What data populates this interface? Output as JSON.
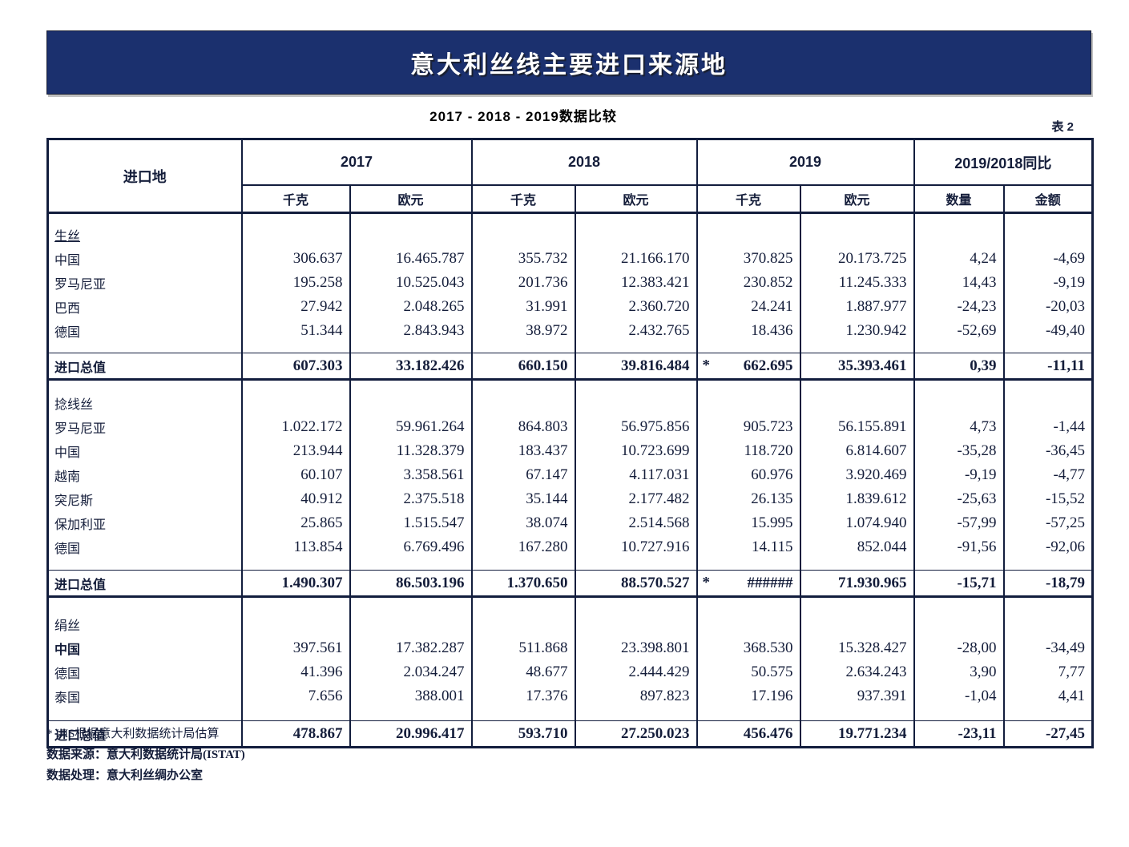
{
  "page": {
    "title_banner": "意大利丝线主要进口来源地",
    "subtitle": "2017 - 2018 - 2019数据比较",
    "table_tag": "表 2"
  },
  "colors": {
    "banner_bg": "#1b306e",
    "border": "#121d3d",
    "title_text": "#ffffff"
  },
  "table": {
    "place_header": "进口地",
    "year_groups": [
      {
        "label": "2017",
        "units": [
          "千克",
          "欧元"
        ]
      },
      {
        "label": "2018",
        "units": [
          "千克",
          "欧元"
        ]
      },
      {
        "label": "2019",
        "units": [
          "千克",
          "欧元"
        ]
      },
      {
        "label": "2019/2018同比",
        "units": [
          "数量",
          "金额"
        ]
      }
    ],
    "total_label": "进口总值",
    "sections": [
      {
        "name": "生丝",
        "underline": true,
        "rows": [
          {
            "place": "中国",
            "values": [
              "306.637",
              "16.465.787",
              "355.732",
              "21.166.170",
              "370.825",
              "20.173.725",
              "4,24",
              "-4,69"
            ]
          },
          {
            "place": "罗马尼亚",
            "values": [
              "195.258",
              "10.525.043",
              "201.736",
              "12.383.421",
              "230.852",
              "11.245.333",
              "14,43",
              "-9,19"
            ]
          },
          {
            "place": "巴西",
            "values": [
              "27.942",
              "2.048.265",
              "31.991",
              "2.360.720",
              "24.241",
              "1.887.977",
              "-24,23",
              "-20,03"
            ]
          },
          {
            "place": "德国",
            "values": [
              "51.344",
              "2.843.943",
              "38.972",
              "2.432.765",
              "18.436",
              "1.230.942",
              "-52,69",
              "-49,40"
            ]
          }
        ],
        "total": {
          "values": [
            "607.303",
            "33.182.426",
            "660.150",
            "39.816.484",
            "662.695",
            "35.393.461",
            "0,39",
            "-11,11"
          ],
          "asterisk_2019kg": "*"
        }
      },
      {
        "name": "捻线丝",
        "underline": false,
        "rows": [
          {
            "place": "罗马尼亚",
            "values": [
              "1.022.172",
              "59.961.264",
              "864.803",
              "56.975.856",
              "905.723",
              "56.155.891",
              "4,73",
              "-1,44"
            ]
          },
          {
            "place": "中国",
            "values": [
              "213.944",
              "11.328.379",
              "183.437",
              "10.723.699",
              "118.720",
              "6.814.607",
              "-35,28",
              "-36,45"
            ]
          },
          {
            "place": "越南",
            "values": [
              "60.107",
              "3.358.561",
              "67.147",
              "4.117.031",
              "60.976",
              "3.920.469",
              "-9,19",
              "-4,77"
            ]
          },
          {
            "place": "突尼斯",
            "values": [
              "40.912",
              "2.375.518",
              "35.144",
              "2.177.482",
              "26.135",
              "1.839.612",
              "-25,63",
              "-15,52"
            ]
          },
          {
            "place": "保加利亚",
            "values": [
              "25.865",
              "1.515.547",
              "38.074",
              "2.514.568",
              "15.995",
              "1.074.940",
              "-57,99",
              "-57,25"
            ]
          },
          {
            "place": "德国",
            "values": [
              "113.854",
              "6.769.496",
              "167.280",
              "10.727.916",
              "14.115",
              "852.044",
              "-91,56",
              "-92,06"
            ]
          }
        ],
        "total": {
          "values": [
            "1.490.307",
            "86.503.196",
            "1.370.650",
            "88.570.527",
            "######",
            "71.930.965",
            "-15,71",
            "-18,79"
          ],
          "asterisk_2019kg": "*"
        }
      },
      {
        "name": "绢丝",
        "underline": false,
        "rows": [
          {
            "place": "中国",
            "bold": true,
            "values": [
              "397.561",
              "17.382.287",
              "511.868",
              "23.398.801",
              "368.530",
              "15.328.427",
              "-28,00",
              "-34,49"
            ]
          },
          {
            "place": "德国",
            "values": [
              "41.396",
              "2.034.247",
              "48.677",
              "2.444.429",
              "50.575",
              "2.634.243",
              "3,90",
              "7,77"
            ]
          },
          {
            "place": "泰国",
            "values": [
              "7.656",
              "388.001",
              "17.376",
              "897.823",
              "17.196",
              "937.391",
              "-1,04",
              "4,41"
            ]
          }
        ],
        "total": {
          "values": [
            "478.867",
            "20.996.417",
            "593.710",
            "27.250.023",
            "456.476",
            "19.771.234",
            "-23,11",
            "-27,45"
          ]
        }
      }
    ]
  },
  "footnotes": [
    {
      "text": "* UIS根据意大利数据统计局估算",
      "bold": false
    },
    {
      "text": "数据来源：意大利数据统计局(ISTAT)",
      "bold": true
    },
    {
      "text": "数据处理：意大利丝绸办公室",
      "bold": true
    }
  ]
}
